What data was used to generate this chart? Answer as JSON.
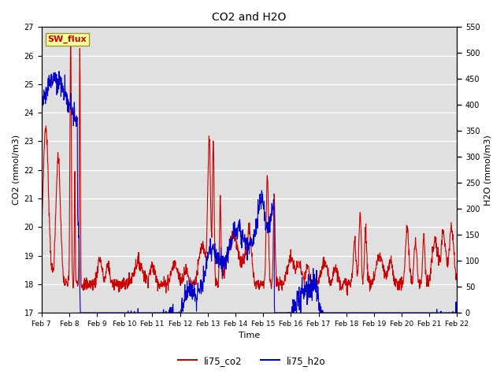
{
  "title": "CO2 and H2O",
  "xlabel": "Time",
  "ylabel_left": "CO2 (mmol/m3)",
  "ylabel_right": "H2O (mmol/m3)",
  "ylim_left": [
    17.0,
    27.0
  ],
  "ylim_right": [
    0,
    550
  ],
  "yticks_left": [
    17.0,
    18.0,
    19.0,
    20.0,
    21.0,
    22.0,
    23.0,
    24.0,
    25.0,
    26.0,
    27.0
  ],
  "yticks_right": [
    0,
    50,
    100,
    150,
    200,
    250,
    300,
    350,
    400,
    450,
    500,
    550
  ],
  "xtick_labels": [
    "Feb 7",
    "Feb 8",
    "Feb 9",
    "Feb 10",
    "Feb 11",
    "Feb 12",
    "Feb 13",
    "Feb 14",
    "Feb 15",
    "Feb 16",
    "Feb 17",
    "Feb 18",
    "Feb 19",
    "Feb 20",
    "Feb 21",
    "Feb 22"
  ],
  "legend_labels": [
    "li75_co2",
    "li75_h2o"
  ],
  "legend_colors": [
    "#cc0000",
    "#0000cc"
  ],
  "co2_color": "#cc0000",
  "h2o_color": "#0000cc",
  "background_color": "#e0e0e0",
  "annotation_text": "SW_flux",
  "annotation_facecolor": "#ffff99",
  "annotation_edgecolor": "#999933",
  "annotation_textcolor": "#cc0000",
  "grid_color": "white",
  "linewidth": 0.8
}
